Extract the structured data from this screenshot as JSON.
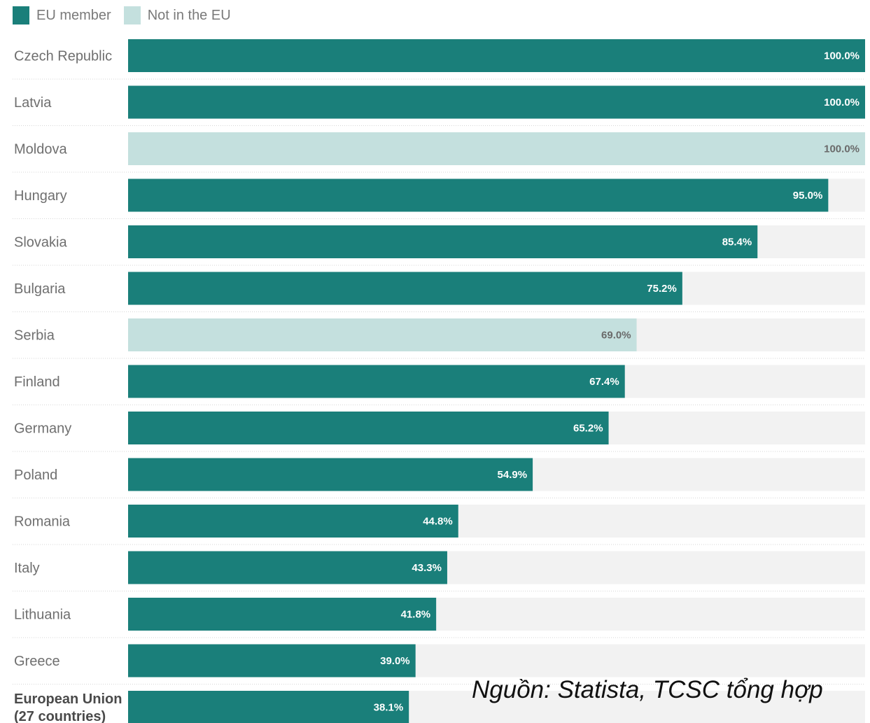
{
  "legend": {
    "items": [
      {
        "label": "EU member",
        "color": "#1a7f7a"
      },
      {
        "label": "Not in the EU",
        "color": "#c4e0de"
      }
    ]
  },
  "source": "Nguồn: Statista, TCSC tổng hợp",
  "chart_data": {
    "type": "bar",
    "orientation": "horizontal",
    "categories": [
      "Czech Republic",
      "Latvia",
      "Moldova",
      "Hungary",
      "Slovakia",
      "Bulgaria",
      "Serbia",
      "Finland",
      "Germany",
      "Poland",
      "Romania",
      "Italy",
      "Lithuania",
      "Greece",
      "European Union (27 countries)"
    ],
    "category_lines": [
      [
        "Czech Republic"
      ],
      [
        "Latvia"
      ],
      [
        "Moldova"
      ],
      [
        "Hungary"
      ],
      [
        "Slovakia"
      ],
      [
        "Bulgaria"
      ],
      [
        "Serbia"
      ],
      [
        "Finland"
      ],
      [
        "Germany"
      ],
      [
        "Poland"
      ],
      [
        "Romania"
      ],
      [
        "Italy"
      ],
      [
        "Lithuania"
      ],
      [
        "Greece"
      ],
      [
        "European Union",
        "(27 countries)"
      ]
    ],
    "values": [
      100.0,
      100.0,
      100.0,
      95.0,
      85.4,
      75.2,
      69.0,
      67.4,
      65.2,
      54.9,
      44.8,
      43.3,
      41.8,
      39.0,
      38.1
    ],
    "value_labels": [
      "100.0%",
      "100.0%",
      "100.0%",
      "95.0%",
      "85.4%",
      "75.2%",
      "69.0%",
      "67.4%",
      "65.2%",
      "54.9%",
      "44.8%",
      "43.3%",
      "41.8%",
      "39.0%",
      "38.1%"
    ],
    "eu_member": [
      true,
      true,
      false,
      true,
      true,
      true,
      false,
      true,
      true,
      true,
      true,
      true,
      true,
      true,
      true
    ],
    "bold_rows": [
      false,
      false,
      false,
      false,
      false,
      false,
      false,
      false,
      false,
      false,
      false,
      false,
      false,
      false,
      true
    ],
    "xlim": [
      0,
      100
    ],
    "colors": {
      "eu": "#1a7f7a",
      "non_eu": "#c4e0de",
      "track": "#f2f2f2",
      "eu_text": "#ffffff",
      "non_eu_text": "#6a6a6a"
    },
    "legend_position": "top-left",
    "grid": false
  }
}
